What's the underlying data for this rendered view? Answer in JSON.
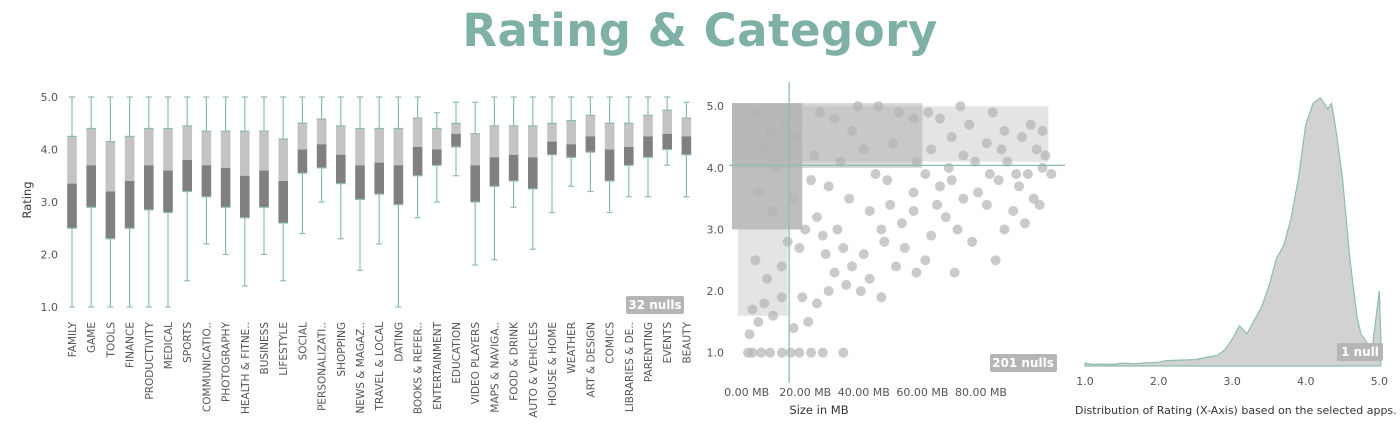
{
  "dashboard": {
    "title": "Rating & Category"
  },
  "colors": {
    "accent": "#7fb0a6",
    "box_upper": "#c4c4c4",
    "box_lower": "#808080",
    "whisker": "#8fbcb0",
    "scatter_point": "#b3b3b3",
    "density_fill": "#d2d2d2",
    "density_line": "#8fbcb0",
    "null_badge": "#b5b5b5"
  },
  "chart_data": [
    {
      "type": "boxplot",
      "ylabel": "Rating",
      "ylim": [
        1.0,
        5.0
      ],
      "yticks": [
        "1.0",
        "2.0",
        "3.0",
        "4.0",
        "5.0"
      ],
      "null_label": "32 nulls",
      "categories": [
        {
          "label": "FAMILY",
          "min": 1.0,
          "q1": 2.5,
          "median": 3.35,
          "q3": 4.25,
          "max": 5.0
        },
        {
          "label": "GAME",
          "min": 1.0,
          "q1": 2.9,
          "median": 3.7,
          "q3": 4.4,
          "max": 5.0
        },
        {
          "label": "TOOLS",
          "min": 1.0,
          "q1": 2.3,
          "median": 3.2,
          "q3": 4.15,
          "max": 5.0
        },
        {
          "label": "FINANCE",
          "min": 1.0,
          "q1": 2.5,
          "median": 3.4,
          "q3": 4.25,
          "max": 5.0
        },
        {
          "label": "PRODUCTIVITY",
          "min": 1.0,
          "q1": 2.85,
          "median": 3.7,
          "q3": 4.4,
          "max": 5.0
        },
        {
          "label": "MEDICAL",
          "min": 1.0,
          "q1": 2.8,
          "median": 3.6,
          "q3": 4.4,
          "max": 5.0
        },
        {
          "label": "SPORTS",
          "min": 1.5,
          "q1": 3.2,
          "median": 3.8,
          "q3": 4.45,
          "max": 5.0
        },
        {
          "label": "COMMUNICATIO..",
          "min": 2.2,
          "q1": 3.1,
          "median": 3.7,
          "q3": 4.35,
          "max": 5.0
        },
        {
          "label": "PHOTOGRAPHY",
          "min": 2.0,
          "q1": 2.9,
          "median": 3.65,
          "q3": 4.35,
          "max": 5.0
        },
        {
          "label": "HEALTH & FITNE..",
          "min": 1.4,
          "q1": 2.7,
          "median": 3.5,
          "q3": 4.35,
          "max": 5.0
        },
        {
          "label": "BUSINESS",
          "min": 2.0,
          "q1": 2.9,
          "median": 3.6,
          "q3": 4.35,
          "max": 5.0
        },
        {
          "label": "LIFESTYLE",
          "min": 1.5,
          "q1": 2.6,
          "median": 3.4,
          "q3": 4.2,
          "max": 5.0
        },
        {
          "label": "SOCIAL",
          "min": 2.4,
          "q1": 3.55,
          "median": 4.0,
          "q3": 4.5,
          "max": 5.0
        },
        {
          "label": "PERSONALIZATI..",
          "min": 3.0,
          "q1": 3.65,
          "median": 4.1,
          "q3": 4.58,
          "max": 5.0
        },
        {
          "label": "SHOPPING",
          "min": 2.3,
          "q1": 3.35,
          "median": 3.9,
          "q3": 4.45,
          "max": 5.0
        },
        {
          "label": "NEWS & MAGAZ..",
          "min": 1.7,
          "q1": 3.05,
          "median": 3.7,
          "q3": 4.4,
          "max": 5.0
        },
        {
          "label": "TRAVEL & LOCAL",
          "min": 2.2,
          "q1": 3.15,
          "median": 3.75,
          "q3": 4.4,
          "max": 5.0
        },
        {
          "label": "DATING",
          "min": 1.0,
          "q1": 2.95,
          "median": 3.7,
          "q3": 4.4,
          "max": 5.0
        },
        {
          "label": "BOOKS & REFER..",
          "min": 2.7,
          "q1": 3.5,
          "median": 4.05,
          "q3": 4.6,
          "max": 5.0
        },
        {
          "label": "ENTERTAINMENT",
          "min": 3.0,
          "q1": 3.7,
          "median": 4.0,
          "q3": 4.4,
          "max": 4.7
        },
        {
          "label": "EDUCATION",
          "min": 3.5,
          "q1": 4.05,
          "median": 4.3,
          "q3": 4.5,
          "max": 4.9
        },
        {
          "label": "VIDEO PLAYERS",
          "min": 1.8,
          "q1": 3.0,
          "median": 3.7,
          "q3": 4.3,
          "max": 4.9
        },
        {
          "label": "MAPS & NAVIGA..",
          "min": 1.9,
          "q1": 3.3,
          "median": 3.85,
          "q3": 4.45,
          "max": 5.0
        },
        {
          "label": "FOOD & DRINK",
          "min": 2.9,
          "q1": 3.4,
          "median": 3.9,
          "q3": 4.45,
          "max": 5.0
        },
        {
          "label": "AUTO & VEHICLES",
          "min": 2.1,
          "q1": 3.25,
          "median": 3.85,
          "q3": 4.45,
          "max": 5.0
        },
        {
          "label": "HOUSE & HOME",
          "min": 2.8,
          "q1": 3.9,
          "median": 4.15,
          "q3": 4.5,
          "max": 5.0
        },
        {
          "label": "WEATHER",
          "min": 3.3,
          "q1": 3.85,
          "median": 4.1,
          "q3": 4.55,
          "max": 5.0
        },
        {
          "label": "ART & DESIGN",
          "min": 3.2,
          "q1": 3.95,
          "median": 4.25,
          "q3": 4.65,
          "max": 5.0
        },
        {
          "label": "COMICS",
          "min": 2.8,
          "q1": 3.4,
          "median": 4.0,
          "q3": 4.5,
          "max": 5.0
        },
        {
          "label": "LIBRARIES & DE..",
          "min": 3.1,
          "q1": 3.7,
          "median": 4.05,
          "q3": 4.5,
          "max": 5.0
        },
        {
          "label": "PARENTING",
          "min": 3.1,
          "q1": 3.85,
          "median": 4.25,
          "q3": 4.65,
          "max": 5.0
        },
        {
          "label": "EVENTS",
          "min": 3.7,
          "q1": 4.0,
          "median": 4.3,
          "q3": 4.75,
          "max": 5.0
        },
        {
          "label": "BEAUTY",
          "min": 3.1,
          "q1": 3.9,
          "median": 4.25,
          "q3": 4.6,
          "max": 4.9
        }
      ]
    },
    {
      "type": "scatter",
      "xlabel": "Size in MB",
      "xlim": [
        -5,
        108
      ],
      "ylim": [
        0.8,
        5.15
      ],
      "xticks": [
        {
          "v": 0,
          "label": "0.00 MB"
        },
        {
          "v": 20,
          "label": "20.00 MB"
        },
        {
          "v": 40,
          "label": "40.00 MB"
        },
        {
          "v": 60,
          "label": "60.00 MB"
        },
        {
          "v": 80,
          "label": "80.00 MB"
        }
      ],
      "yticks": [
        "1.0",
        "2.0",
        "3.0",
        "4.0",
        "5.0"
      ],
      "reference_lines": {
        "x": 14.5,
        "y": 4.04
      },
      "null_label": "201 nulls",
      "points": [
        [
          0.5,
          1.0
        ],
        [
          2,
          1.0
        ],
        [
          5,
          1.0
        ],
        [
          8,
          1.0
        ],
        [
          12,
          1.0
        ],
        [
          15,
          1.0
        ],
        [
          18,
          1.0
        ],
        [
          22,
          1.0
        ],
        [
          26,
          1.0
        ],
        [
          33,
          1.0
        ],
        [
          1,
          1.3
        ],
        [
          4,
          1.5
        ],
        [
          9,
          1.6
        ],
        [
          16,
          1.4
        ],
        [
          21,
          1.5
        ],
        [
          2,
          1.7
        ],
        [
          6,
          1.8
        ],
        [
          12,
          1.9
        ],
        [
          19,
          1.9
        ],
        [
          24,
          1.8
        ],
        [
          28,
          2.0
        ],
        [
          34,
          2.1
        ],
        [
          39,
          2.0
        ],
        [
          46,
          1.9
        ],
        [
          30,
          2.3
        ],
        [
          36,
          2.4
        ],
        [
          42,
          2.2
        ],
        [
          51,
          2.4
        ],
        [
          58,
          2.3
        ],
        [
          61,
          2.5
        ],
        [
          71,
          2.3
        ],
        [
          85,
          2.5
        ],
        [
          27,
          2.6
        ],
        [
          33,
          2.7
        ],
        [
          40,
          2.6
        ],
        [
          47,
          2.8
        ],
        [
          54,
          2.7
        ],
        [
          63,
          2.9
        ],
        [
          77,
          2.8
        ],
        [
          72,
          3.0
        ],
        [
          88,
          3.0
        ],
        [
          95,
          3.1
        ],
        [
          46,
          3.0
        ],
        [
          53,
          3.1
        ],
        [
          68,
          3.2
        ],
        [
          91,
          3.3
        ],
        [
          98,
          3.5
        ],
        [
          42,
          3.3
        ],
        [
          49,
          3.4
        ],
        [
          57,
          3.3
        ],
        [
          65,
          3.4
        ],
        [
          74,
          3.5
        ],
        [
          82,
          3.4
        ],
        [
          57,
          3.6
        ],
        [
          66,
          3.7
        ],
        [
          79,
          3.6
        ],
        [
          86,
          3.8
        ],
        [
          93,
          3.7
        ],
        [
          48,
          3.8
        ],
        [
          61,
          3.9
        ],
        [
          70,
          3.8
        ],
        [
          83,
          3.9
        ],
        [
          96,
          3.9
        ],
        [
          101,
          4.0
        ],
        [
          58,
          4.1
        ],
        [
          74,
          4.2
        ],
        [
          89,
          4.1
        ],
        [
          99,
          4.3
        ],
        [
          63,
          4.3
        ],
        [
          82,
          4.4
        ],
        [
          94,
          4.5
        ],
        [
          70,
          4.5
        ],
        [
          88,
          4.6
        ],
        [
          101,
          4.6
        ],
        [
          76,
          4.7
        ],
        [
          97,
          4.7
        ],
        [
          66,
          4.8
        ],
        [
          84,
          4.9
        ],
        [
          62,
          4.9
        ],
        [
          73,
          5.0
        ],
        [
          45,
          5.0
        ],
        [
          52,
          4.9
        ],
        [
          57,
          4.8
        ],
        [
          102,
          4.2
        ],
        [
          104,
          3.9
        ],
        [
          100,
          3.4
        ],
        [
          92,
          3.9
        ],
        [
          87,
          4.3
        ],
        [
          78,
          4.1
        ],
        [
          69,
          4.0
        ],
        [
          50,
          4.4
        ],
        [
          36,
          4.6
        ],
        [
          30,
          4.8
        ],
        [
          25,
          4.9
        ],
        [
          38,
          5.0
        ],
        [
          28,
          3.7
        ],
        [
          35,
          3.5
        ],
        [
          24,
          3.2
        ],
        [
          31,
          3.0
        ],
        [
          26,
          2.9
        ],
        [
          18,
          2.7
        ],
        [
          12,
          2.4
        ],
        [
          7,
          2.2
        ],
        [
          3,
          2.5
        ],
        [
          14,
          2.8
        ],
        [
          20,
          3.0
        ],
        [
          9,
          3.3
        ],
        [
          4,
          3.6
        ],
        [
          16,
          3.5
        ],
        [
          22,
          3.8
        ],
        [
          10,
          4.0
        ],
        [
          6,
          4.3
        ],
        [
          17,
          4.5
        ],
        [
          13,
          4.7
        ],
        [
          3,
          4.9
        ],
        [
          8,
          4.6
        ],
        [
          23,
          4.2
        ],
        [
          32,
          4.1
        ],
        [
          40,
          4.3
        ],
        [
          44,
          3.9
        ]
      ]
    },
    {
      "type": "area",
      "caption": "Distribution of Rating (X-Axis) based on the selected apps.",
      "xlim": [
        1.0,
        5.05
      ],
      "xticks": [
        "1.0",
        "2.0",
        "3.0",
        "4.0",
        "5.0"
      ],
      "null_label": "1 null",
      "x": [
        1.0,
        1.1,
        1.2,
        1.4,
        1.5,
        1.7,
        1.8,
        2.0,
        2.1,
        2.3,
        2.5,
        2.7,
        2.8,
        2.9,
        3.0,
        3.1,
        3.2,
        3.3,
        3.4,
        3.5,
        3.6,
        3.7,
        3.8,
        3.9,
        4.0,
        4.1,
        4.2,
        4.3,
        4.35,
        4.4,
        4.5,
        4.6,
        4.7,
        4.75,
        4.8,
        4.9,
        5.0,
        5.02
      ],
      "density": [
        0.011,
        0.006,
        0.007,
        0.006,
        0.011,
        0.008,
        0.012,
        0.014,
        0.02,
        0.022,
        0.024,
        0.035,
        0.04,
        0.06,
        0.1,
        0.15,
        0.12,
        0.17,
        0.22,
        0.3,
        0.4,
        0.45,
        0.55,
        0.7,
        0.9,
        0.98,
        1.0,
        0.96,
        0.98,
        0.9,
        0.7,
        0.4,
        0.18,
        0.12,
        0.1,
        0.06,
        0.28,
        0.11
      ]
    }
  ]
}
